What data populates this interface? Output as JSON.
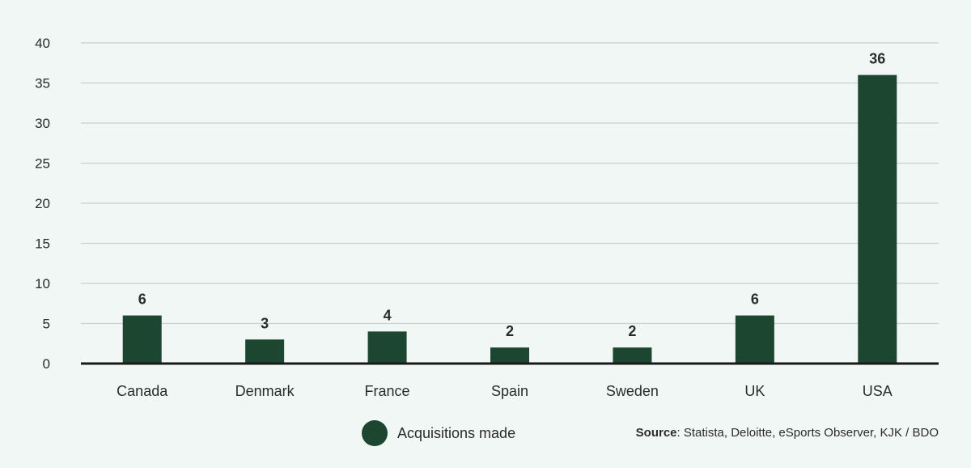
{
  "chart_data": {
    "type": "bar",
    "categories": [
      "Canada",
      "Denmark",
      "France",
      "Spain",
      "Sweden",
      "UK",
      "USA"
    ],
    "series": [
      {
        "name": "Acquisitions made",
        "values": [
          6,
          3,
          4,
          2,
          2,
          6,
          36
        ],
        "data_labels": [
          "6",
          "3",
          "4",
          "2",
          "2",
          "6",
          "36"
        ],
        "color": "#1d4631"
      }
    ],
    "ylim": [
      0,
      40
    ],
    "yticks": [
      0,
      5,
      10,
      15,
      20,
      25,
      30,
      35,
      40
    ],
    "grid": true,
    "legend_placement": "bottom"
  },
  "source": {
    "label": "Source",
    "text": ": Statista, Deloitte, eSports Observer, KJK / BDO"
  },
  "colors": {
    "bar": "#1d4631",
    "grid": "#c9d0cd",
    "axis": "#1a1a1a",
    "background": "#f1f7f4"
  }
}
